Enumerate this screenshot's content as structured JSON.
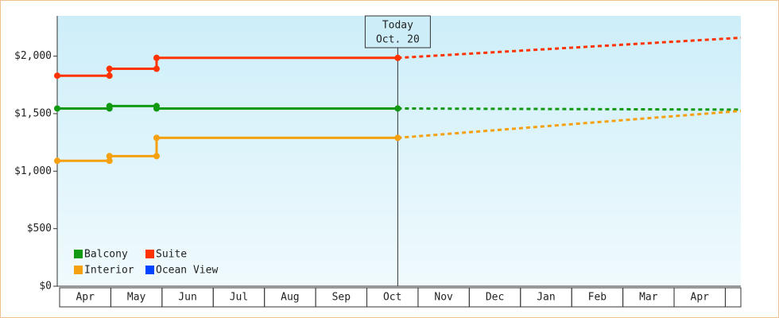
{
  "chart_data": {
    "type": "line",
    "step": true,
    "categories": [
      "Apr",
      "May",
      "Jun",
      "Jul",
      "Aug",
      "Sep",
      "Oct",
      "Nov",
      "Dec",
      "Jan",
      "Feb",
      "Mar",
      "Apr",
      null
    ],
    "xlim": [
      0,
      13.35
    ],
    "ylim": [
      0,
      2350
    ],
    "yticks": [
      {
        "value": 0,
        "label": "$0"
      },
      {
        "value": 500,
        "label": "$500"
      },
      {
        "value": 1000,
        "label": "$1,000"
      },
      {
        "value": 1500,
        "label": "$1,500"
      },
      {
        "value": 2000,
        "label": "$2,000"
      }
    ],
    "today": {
      "x": 6.65,
      "label": [
        "Today",
        "Oct. 20"
      ]
    },
    "legend": "bottom-left",
    "series": [
      {
        "name": "Balcony",
        "color": "#119911",
        "x": [
          0,
          1.02,
          1.02,
          1.94,
          1.94,
          6.65
        ],
        "values": [
          1545,
          1545,
          1566,
          1566,
          1545,
          1545
        ],
        "projection": {
          "x": 13.35,
          "value": 1535
        }
      },
      {
        "name": "Suite",
        "color": "#ff3300",
        "x": [
          0,
          1.02,
          1.02,
          1.94,
          1.94,
          6.65
        ],
        "values": [
          1830,
          1830,
          1890,
          1890,
          1985,
          1985
        ],
        "projection": {
          "x": 13.35,
          "value": 2160
        }
      },
      {
        "name": "Interior",
        "color": "#f5a00f",
        "x": [
          0,
          1.02,
          1.02,
          1.94,
          1.94,
          6.65
        ],
        "values": [
          1090,
          1090,
          1131,
          1131,
          1290,
          1290
        ],
        "projection": {
          "x": 13.35,
          "value": 1524
        }
      },
      {
        "name": "Ocean View",
        "color": "#0044ff",
        "x": [],
        "values": []
      }
    ]
  }
}
